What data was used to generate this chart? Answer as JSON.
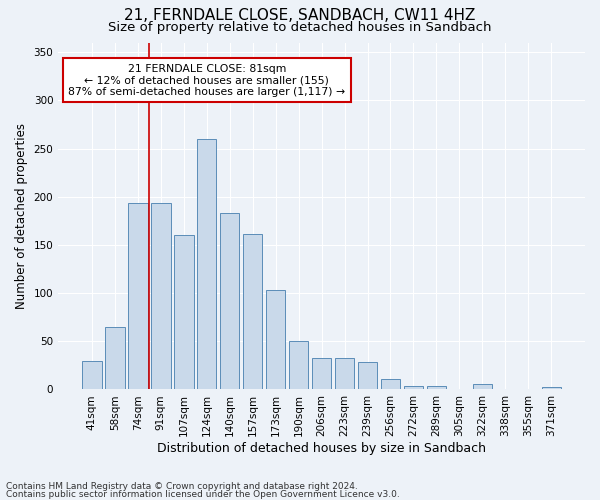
{
  "title": "21, FERNDALE CLOSE, SANDBACH, CW11 4HZ",
  "subtitle": "Size of property relative to detached houses in Sandbach",
  "xlabel": "Distribution of detached houses by size in Sandbach",
  "ylabel": "Number of detached properties",
  "categories": [
    "41sqm",
    "58sqm",
    "74sqm",
    "91sqm",
    "107sqm",
    "124sqm",
    "140sqm",
    "157sqm",
    "173sqm",
    "190sqm",
    "206sqm",
    "223sqm",
    "239sqm",
    "256sqm",
    "272sqm",
    "289sqm",
    "305sqm",
    "322sqm",
    "338sqm",
    "355sqm",
    "371sqm"
  ],
  "values": [
    30,
    65,
    193,
    193,
    160,
    260,
    183,
    161,
    103,
    50,
    33,
    33,
    29,
    11,
    4,
    4,
    0,
    6,
    0,
    0,
    3
  ],
  "bar_color": "#c9d9ea",
  "bar_edge_color": "#5b8db8",
  "red_line_x": 2.5,
  "annotation_line1": "21 FERNDALE CLOSE: 81sqm",
  "annotation_line2": "← 12% of detached houses are smaller (155)",
  "annotation_line3": "87% of semi-detached houses are larger (1,117) →",
  "annotation_box_color": "#ffffff",
  "annotation_box_edge_color": "#cc0000",
  "red_line_color": "#cc0000",
  "ylim": [
    0,
    360
  ],
  "yticks": [
    0,
    50,
    100,
    150,
    200,
    250,
    300,
    350
  ],
  "footer_line1": "Contains HM Land Registry data © Crown copyright and database right 2024.",
  "footer_line2": "Contains public sector information licensed under the Open Government Licence v3.0.",
  "bg_color": "#edf2f8",
  "grid_color": "#ffffff",
  "title_fontsize": 11,
  "subtitle_fontsize": 9.5,
  "xlabel_fontsize": 9,
  "ylabel_fontsize": 8.5,
  "tick_fontsize": 7.5,
  "footer_fontsize": 6.5
}
